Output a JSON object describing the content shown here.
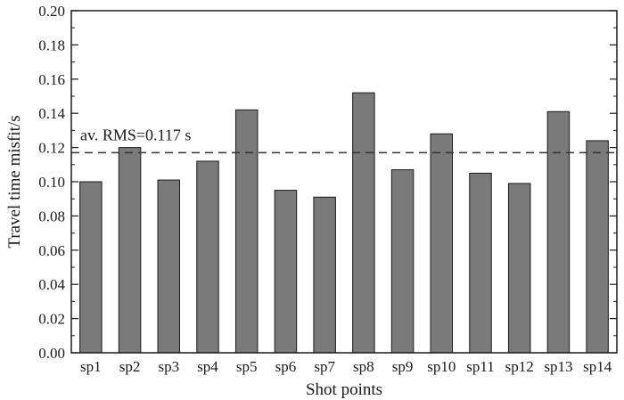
{
  "chart_data": {
    "type": "bar",
    "categories": [
      "sp1",
      "sp2",
      "sp3",
      "sp4",
      "sp5",
      "sp6",
      "sp7",
      "sp8",
      "sp9",
      "sp10",
      "sp11",
      "sp12",
      "sp13",
      "sp14"
    ],
    "values": [
      0.1,
      0.12,
      0.101,
      0.112,
      0.142,
      0.095,
      0.091,
      0.152,
      0.107,
      0.128,
      0.105,
      0.099,
      0.141,
      0.124
    ],
    "title": "",
    "xlabel": "Shot points",
    "ylabel": "Travel time misfit/s",
    "ylim": [
      0,
      0.2
    ],
    "yticks": [
      "0.00",
      "0.02",
      "0.04",
      "0.06",
      "0.08",
      "0.10",
      "0.12",
      "0.14",
      "0.16",
      "0.18",
      "0.20"
    ],
    "reference_line": {
      "value": 0.117,
      "label": "av. RMS=0.117 s",
      "style": "dashed"
    },
    "bar_color": "#7a7a7a",
    "grid": false,
    "legend": "none"
  }
}
